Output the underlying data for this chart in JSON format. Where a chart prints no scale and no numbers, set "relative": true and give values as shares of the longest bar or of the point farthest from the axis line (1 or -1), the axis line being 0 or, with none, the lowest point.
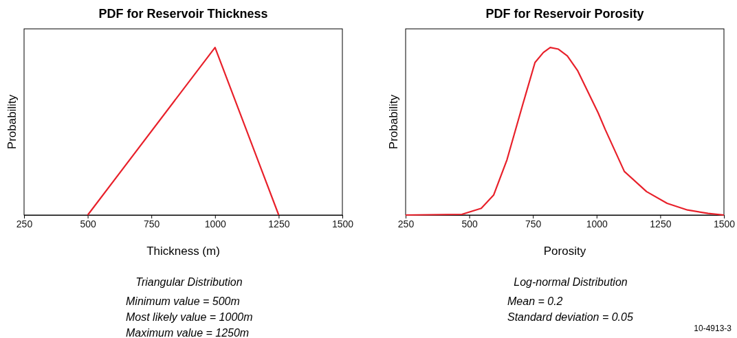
{
  "chart_data": [
    {
      "type": "line",
      "title": "PDF for Reservoir Thickness",
      "xlabel": "Thickness (m)",
      "ylabel": "Probability",
      "relative": true,
      "xlim": [
        250,
        1500
      ],
      "xticks": [
        250,
        500,
        750,
        1000,
        1250,
        1500
      ],
      "tick_labels": "x",
      "series": [
        {
          "color": "#e8202a",
          "x": [
            500,
            1000,
            1250
          ],
          "values": [
            0,
            1,
            0
          ]
        }
      ],
      "annotations": [
        "Triangular Distribution",
        "Minimum value = 500m",
        "Most likely value = 1000m",
        "Maximum value = 1250m"
      ]
    },
    {
      "type": "line",
      "title": "PDF for Reservoir Porosity",
      "xlabel": "Porosity",
      "ylabel": "Probability",
      "relative": true,
      "xlim": [
        250,
        1500
      ],
      "xticks": [
        250,
        500,
        750,
        1000,
        1250,
        1500
      ],
      "tick_labels": "x",
      "series": [
        {
          "color": "#e8202a",
          "x": [
            250,
            471,
            547,
            596,
            648,
            710,
            758,
            791,
            818,
            850,
            885,
            926,
            1006,
            1034,
            1109,
            1196,
            1277,
            1357,
            1438,
            1500
          ],
          "values": [
            0,
            0.004,
            0.04,
            0.12,
            0.33,
            0.66,
            0.91,
            0.97,
            1,
            0.99,
            0.95,
            0.86,
            0.61,
            0.51,
            0.26,
            0.14,
            0.07,
            0.03,
            0.01,
            0
          ]
        }
      ],
      "annotations": [
        "Log-normal Distribution",
        "Mean = 0.2",
        "Standard deviation = 0.05",
        "10-4913-3"
      ]
    }
  ]
}
